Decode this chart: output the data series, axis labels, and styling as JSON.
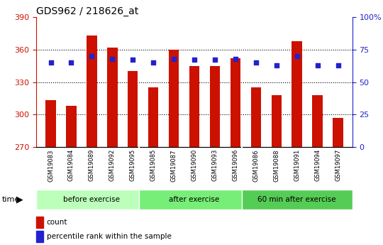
{
  "title": "GDS962 / 218626_at",
  "samples": [
    "GSM19083",
    "GSM19084",
    "GSM19089",
    "GSM19092",
    "GSM19095",
    "GSM19085",
    "GSM19087",
    "GSM19090",
    "GSM19093",
    "GSM19096",
    "GSM19086",
    "GSM19088",
    "GSM19091",
    "GSM19094",
    "GSM19097"
  ],
  "bar_values": [
    313,
    308,
    373,
    362,
    340,
    325,
    360,
    345,
    345,
    352,
    325,
    318,
    368,
    318,
    297
  ],
  "percentile_values": [
    65,
    65,
    70,
    68,
    67,
    65,
    68,
    67,
    67,
    68,
    65,
    63,
    70,
    63,
    63
  ],
  "groups": [
    {
      "label": "before exercise",
      "start": 0,
      "end": 5
    },
    {
      "label": "after exercise",
      "start": 5,
      "end": 10
    },
    {
      "label": "60 min after exercise",
      "start": 10,
      "end": 15
    }
  ],
  "group_colors": [
    "#bbffbb",
    "#77ee77",
    "#55cc55"
  ],
  "ymin": 270,
  "ymax": 390,
  "yticks": [
    270,
    300,
    330,
    360,
    390
  ],
  "y2min": 0,
  "y2max": 100,
  "y2ticks": [
    0,
    25,
    50,
    75,
    100
  ],
  "bar_color": "#cc1100",
  "dot_color": "#2222cc",
  "bg_color": "#ffffff",
  "tick_bg_color": "#cccccc",
  "left_tick_color": "#cc1100",
  "right_tick_color": "#2222cc",
  "title_fontsize": 10,
  "tick_label_fontsize": 6,
  "group_label_fontsize": 7.5,
  "legend_fontsize": 7.5
}
